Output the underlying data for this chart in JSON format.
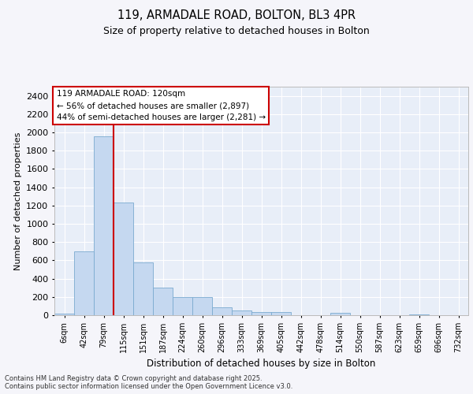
{
  "title1": "119, ARMADALE ROAD, BOLTON, BL3 4PR",
  "title2": "Size of property relative to detached houses in Bolton",
  "xlabel": "Distribution of detached houses by size in Bolton",
  "ylabel": "Number of detached properties",
  "bar_labels": [
    "6sqm",
    "42sqm",
    "79sqm",
    "115sqm",
    "151sqm",
    "187sqm",
    "224sqm",
    "260sqm",
    "296sqm",
    "333sqm",
    "369sqm",
    "405sqm",
    "442sqm",
    "478sqm",
    "514sqm",
    "550sqm",
    "587sqm",
    "623sqm",
    "659sqm",
    "696sqm",
    "732sqm"
  ],
  "bar_values": [
    15,
    700,
    1960,
    1235,
    575,
    305,
    200,
    200,
    85,
    50,
    38,
    38,
    0,
    0,
    22,
    0,
    0,
    0,
    12,
    0,
    0
  ],
  "bar_color": "#c5d8f0",
  "bar_edge_color": "#7aaad0",
  "background_color": "#e8eef8",
  "grid_color": "#ffffff",
  "red_line_index": 3,
  "annotation_text": "119 ARMADALE ROAD: 120sqm\n← 56% of detached houses are smaller (2,897)\n44% of semi-detached houses are larger (2,281) →",
  "annotation_box_color": "#ffffff",
  "annotation_box_edge": "#cc0000",
  "red_line_color": "#cc0000",
  "footnote": "Contains HM Land Registry data © Crown copyright and database right 2025.\nContains public sector information licensed under the Open Government Licence v3.0.",
  "ylim": [
    0,
    2500
  ],
  "yticks": [
    0,
    200,
    400,
    600,
    800,
    1000,
    1200,
    1400,
    1600,
    1800,
    2000,
    2200,
    2400
  ],
  "fig_width": 6.0,
  "fig_height": 5.0,
  "fig_facecolor": "#f5f5fa"
}
